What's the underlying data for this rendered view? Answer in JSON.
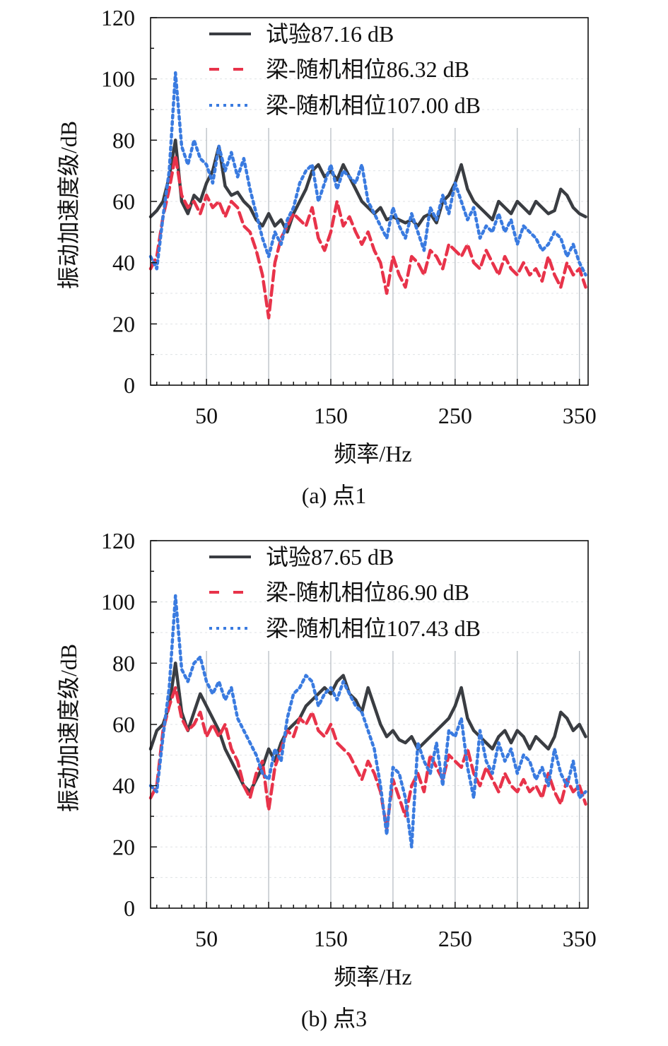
{
  "colors": {
    "test": "#3a3d42",
    "beam_random_a": "#e8334a",
    "beam_random_b": "#3a7be0",
    "grid": "#b8bec4",
    "axis": "#111111"
  },
  "chart_data": [
    {
      "type": "line",
      "caption": "(a) 点1",
      "xlabel": "频率/Hz",
      "ylabel": "振动加速度级/dB",
      "xlim": [
        5,
        357
      ],
      "ylim": [
        0,
        120
      ],
      "xticks": [
        50,
        150,
        250,
        350
      ],
      "yticks": [
        0,
        20,
        40,
        60,
        80,
        100,
        120
      ],
      "vgrid": [
        50,
        100,
        150,
        200,
        250,
        300,
        350
      ],
      "legend": [
        "试验87.16 dB",
        "梁-随机相位86.32 dB",
        "梁-随机相位107.00 dB"
      ],
      "series": [
        {
          "name": "试验87.16 dB",
          "style": "solid",
          "x": [
            5,
            10,
            15,
            20,
            25,
            30,
            35,
            40,
            45,
            50,
            55,
            60,
            65,
            70,
            75,
            80,
            85,
            90,
            95,
            100,
            105,
            110,
            115,
            120,
            125,
            130,
            135,
            140,
            145,
            150,
            155,
            160,
            165,
            170,
            175,
            180,
            185,
            190,
            195,
            200,
            205,
            210,
            215,
            220,
            225,
            230,
            235,
            240,
            245,
            250,
            255,
            260,
            265,
            270,
            275,
            280,
            285,
            290,
            295,
            300,
            305,
            310,
            315,
            320,
            325,
            330,
            335,
            340,
            345,
            350,
            355
          ],
          "values": [
            55,
            57,
            60,
            68,
            80,
            60,
            56,
            62,
            60,
            66,
            70,
            78,
            65,
            62,
            63,
            60,
            58,
            54,
            52,
            56,
            52,
            54,
            50,
            56,
            60,
            64,
            70,
            72,
            68,
            70,
            67,
            72,
            68,
            64,
            60,
            58,
            56,
            58,
            54,
            55,
            54,
            53,
            54,
            52,
            55,
            56,
            53,
            60,
            62,
            66,
            72,
            64,
            60,
            58,
            56,
            54,
            60,
            58,
            56,
            60,
            58,
            56,
            60,
            58,
            56,
            57,
            64,
            62,
            58,
            56,
            55
          ]
        },
        {
          "name": "梁-随机相位86.32 dB",
          "style": "dash",
          "x": [
            5,
            10,
            15,
            20,
            25,
            30,
            35,
            40,
            45,
            50,
            55,
            60,
            65,
            70,
            75,
            80,
            85,
            90,
            95,
            100,
            105,
            110,
            115,
            120,
            125,
            130,
            135,
            140,
            145,
            150,
            155,
            160,
            165,
            170,
            175,
            180,
            185,
            190,
            195,
            200,
            205,
            210,
            215,
            220,
            225,
            230,
            235,
            240,
            245,
            250,
            255,
            260,
            265,
            270,
            275,
            280,
            285,
            290,
            295,
            300,
            305,
            310,
            315,
            320,
            325,
            330,
            335,
            340,
            345,
            350,
            355
          ],
          "values": [
            38,
            42,
            55,
            64,
            75,
            62,
            58,
            60,
            56,
            62,
            58,
            60,
            55,
            60,
            58,
            52,
            50,
            44,
            36,
            22,
            40,
            48,
            52,
            56,
            54,
            52,
            58,
            48,
            44,
            50,
            60,
            52,
            55,
            50,
            46,
            50,
            44,
            40,
            30,
            42,
            36,
            32,
            42,
            40,
            36,
            44,
            42,
            38,
            46,
            44,
            42,
            46,
            40,
            38,
            44,
            40,
            36,
            42,
            38,
            36,
            40,
            36,
            38,
            34,
            42,
            36,
            32,
            40,
            36,
            38,
            32
          ]
        },
        {
          "name": "梁-随机相位107.00 dB",
          "style": "dot",
          "x": [
            5,
            10,
            15,
            20,
            25,
            30,
            35,
            40,
            45,
            50,
            55,
            60,
            65,
            70,
            75,
            80,
            85,
            90,
            95,
            100,
            105,
            110,
            115,
            120,
            125,
            130,
            135,
            140,
            145,
            150,
            155,
            160,
            165,
            170,
            175,
            180,
            185,
            190,
            195,
            200,
            205,
            210,
            215,
            220,
            225,
            230,
            235,
            240,
            245,
            250,
            255,
            260,
            265,
            270,
            275,
            280,
            285,
            290,
            295,
            300,
            305,
            310,
            315,
            320,
            325,
            330,
            335,
            340,
            345,
            350,
            355
          ],
          "values": [
            42,
            38,
            55,
            70,
            102,
            78,
            72,
            80,
            74,
            72,
            66,
            78,
            70,
            76,
            68,
            74,
            64,
            56,
            48,
            42,
            50,
            46,
            54,
            58,
            66,
            70,
            72,
            60,
            66,
            72,
            64,
            70,
            68,
            66,
            72,
            60,
            56,
            52,
            48,
            58,
            52,
            48,
            56,
            50,
            44,
            58,
            54,
            62,
            56,
            66,
            60,
            54,
            58,
            48,
            52,
            50,
            56,
            50,
            54,
            46,
            52,
            50,
            48,
            44,
            46,
            50,
            48,
            42,
            46,
            40,
            36
          ]
        }
      ]
    },
    {
      "type": "line",
      "caption": "(b) 点3",
      "xlabel": "频率/Hz",
      "ylabel": "振动加速度级/dB",
      "xlim": [
        5,
        357
      ],
      "ylim": [
        0,
        120
      ],
      "xticks": [
        50,
        150,
        250,
        350
      ],
      "yticks": [
        0,
        20,
        40,
        60,
        80,
        100,
        120
      ],
      "vgrid": [
        50,
        100,
        150,
        200,
        250,
        300,
        350
      ],
      "legend": [
        "试验87.65 dB",
        "梁-随机相位86.90 dB",
        "梁-随机相位107.43 dB"
      ],
      "series": [
        {
          "name": "试验87.65 dB",
          "style": "solid",
          "x": [
            5,
            10,
            15,
            20,
            25,
            30,
            35,
            40,
            45,
            50,
            55,
            60,
            65,
            70,
            75,
            80,
            85,
            90,
            95,
            100,
            105,
            110,
            115,
            120,
            125,
            130,
            135,
            140,
            145,
            150,
            155,
            160,
            165,
            170,
            175,
            180,
            185,
            190,
            195,
            200,
            205,
            210,
            215,
            220,
            225,
            230,
            235,
            240,
            245,
            250,
            255,
            260,
            265,
            270,
            275,
            280,
            285,
            290,
            295,
            300,
            305,
            310,
            315,
            320,
            325,
            330,
            335,
            340,
            345,
            350,
            355
          ],
          "values": [
            52,
            58,
            60,
            66,
            80,
            64,
            58,
            64,
            70,
            66,
            62,
            58,
            52,
            48,
            44,
            40,
            38,
            42,
            46,
            52,
            48,
            54,
            58,
            60,
            62,
            66,
            68,
            70,
            72,
            70,
            74,
            76,
            70,
            68,
            64,
            72,
            66,
            60,
            56,
            58,
            55,
            54,
            56,
            52,
            54,
            56,
            58,
            60,
            62,
            66,
            72,
            62,
            58,
            56,
            54,
            52,
            56,
            58,
            54,
            58,
            56,
            52,
            56,
            54,
            52,
            56,
            64,
            62,
            58,
            60,
            56
          ]
        },
        {
          "name": "梁-随机相位86.90 dB",
          "style": "dash",
          "x": [
            5,
            10,
            15,
            20,
            25,
            30,
            35,
            40,
            45,
            50,
            55,
            60,
            65,
            70,
            75,
            80,
            85,
            90,
            95,
            100,
            105,
            110,
            115,
            120,
            125,
            130,
            135,
            140,
            145,
            150,
            155,
            160,
            165,
            170,
            175,
            180,
            185,
            190,
            195,
            200,
            205,
            210,
            215,
            220,
            225,
            230,
            235,
            240,
            245,
            250,
            255,
            260,
            265,
            270,
            275,
            280,
            285,
            290,
            295,
            300,
            305,
            310,
            315,
            320,
            325,
            330,
            335,
            340,
            345,
            350,
            355
          ],
          "values": [
            36,
            40,
            58,
            66,
            72,
            62,
            58,
            60,
            64,
            56,
            60,
            56,
            60,
            52,
            48,
            40,
            36,
            44,
            48,
            32,
            46,
            52,
            58,
            56,
            62,
            60,
            64,
            58,
            56,
            60,
            54,
            52,
            50,
            46,
            42,
            48,
            44,
            38,
            26,
            42,
            36,
            30,
            40,
            44,
            38,
            50,
            46,
            42,
            50,
            48,
            46,
            52,
            44,
            40,
            46,
            42,
            38,
            44,
            40,
            38,
            42,
            38,
            40,
            36,
            44,
            38,
            34,
            42,
            38,
            40,
            34
          ]
        },
        {
          "name": "梁-随机相位107.43 dB",
          "style": "dot",
          "x": [
            5,
            10,
            15,
            20,
            25,
            30,
            35,
            40,
            45,
            50,
            55,
            60,
            65,
            70,
            75,
            80,
            85,
            90,
            95,
            100,
            105,
            110,
            115,
            120,
            125,
            130,
            135,
            140,
            145,
            150,
            155,
            160,
            165,
            170,
            175,
            180,
            185,
            190,
            195,
            200,
            205,
            210,
            215,
            220,
            225,
            230,
            235,
            240,
            245,
            250,
            255,
            260,
            265,
            270,
            275,
            280,
            285,
            290,
            295,
            300,
            305,
            310,
            315,
            320,
            325,
            330,
            335,
            340,
            345,
            350,
            355
          ],
          "values": [
            40,
            38,
            56,
            72,
            102,
            78,
            74,
            80,
            82,
            74,
            70,
            74,
            68,
            72,
            62,
            58,
            54,
            50,
            44,
            42,
            52,
            48,
            62,
            70,
            72,
            76,
            74,
            66,
            70,
            72,
            68,
            74,
            70,
            66,
            64,
            58,
            52,
            40,
            24,
            46,
            44,
            36,
            20,
            54,
            48,
            44,
            54,
            40,
            58,
            56,
            62,
            46,
            36,
            58,
            48,
            44,
            54,
            48,
            52,
            44,
            50,
            48,
            42,
            46,
            40,
            52,
            44,
            40,
            48,
            36,
            38
          ]
        }
      ]
    }
  ]
}
